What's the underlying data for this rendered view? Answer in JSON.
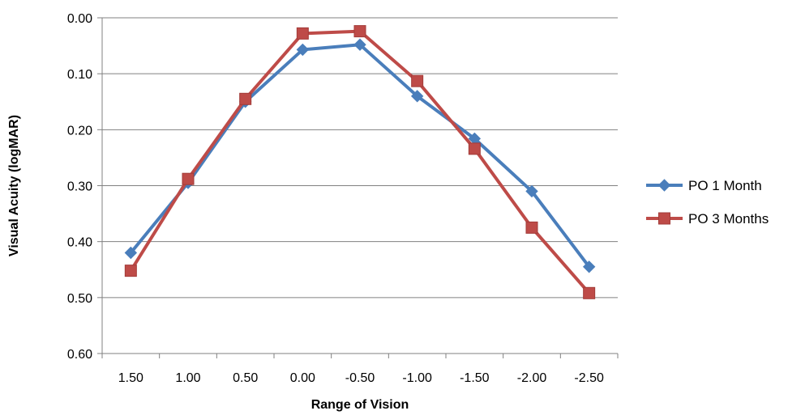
{
  "chart_data": {
    "type": "line",
    "title": "",
    "xlabel": "Range of Vision",
    "ylabel": "Visual Acuity (logMAR)",
    "categories": [
      "1.50",
      "1.00",
      "0.50",
      "0.00",
      "-0.50",
      "-1.00",
      "-1.50",
      "-2.00",
      "-2.50"
    ],
    "y_ticks": [
      "0.00",
      "0.10",
      "0.20",
      "0.30",
      "0.40",
      "0.50",
      "0.60"
    ],
    "ylim": [
      0,
      0.6
    ],
    "y_inverted": true,
    "grid": "horizontal",
    "legend_position": "right",
    "series": [
      {
        "name": "PO 1 Month",
        "color": "#4a7ebb",
        "marker": "diamond",
        "values": [
          0.42,
          0.295,
          0.15,
          0.057,
          0.048,
          0.14,
          0.216,
          0.31,
          0.445
        ]
      },
      {
        "name": "PO 3 Months",
        "color": "#be4b48",
        "marker": "square",
        "values": [
          0.452,
          0.288,
          0.145,
          0.028,
          0.024,
          0.113,
          0.234,
          0.375,
          0.492
        ]
      }
    ]
  }
}
